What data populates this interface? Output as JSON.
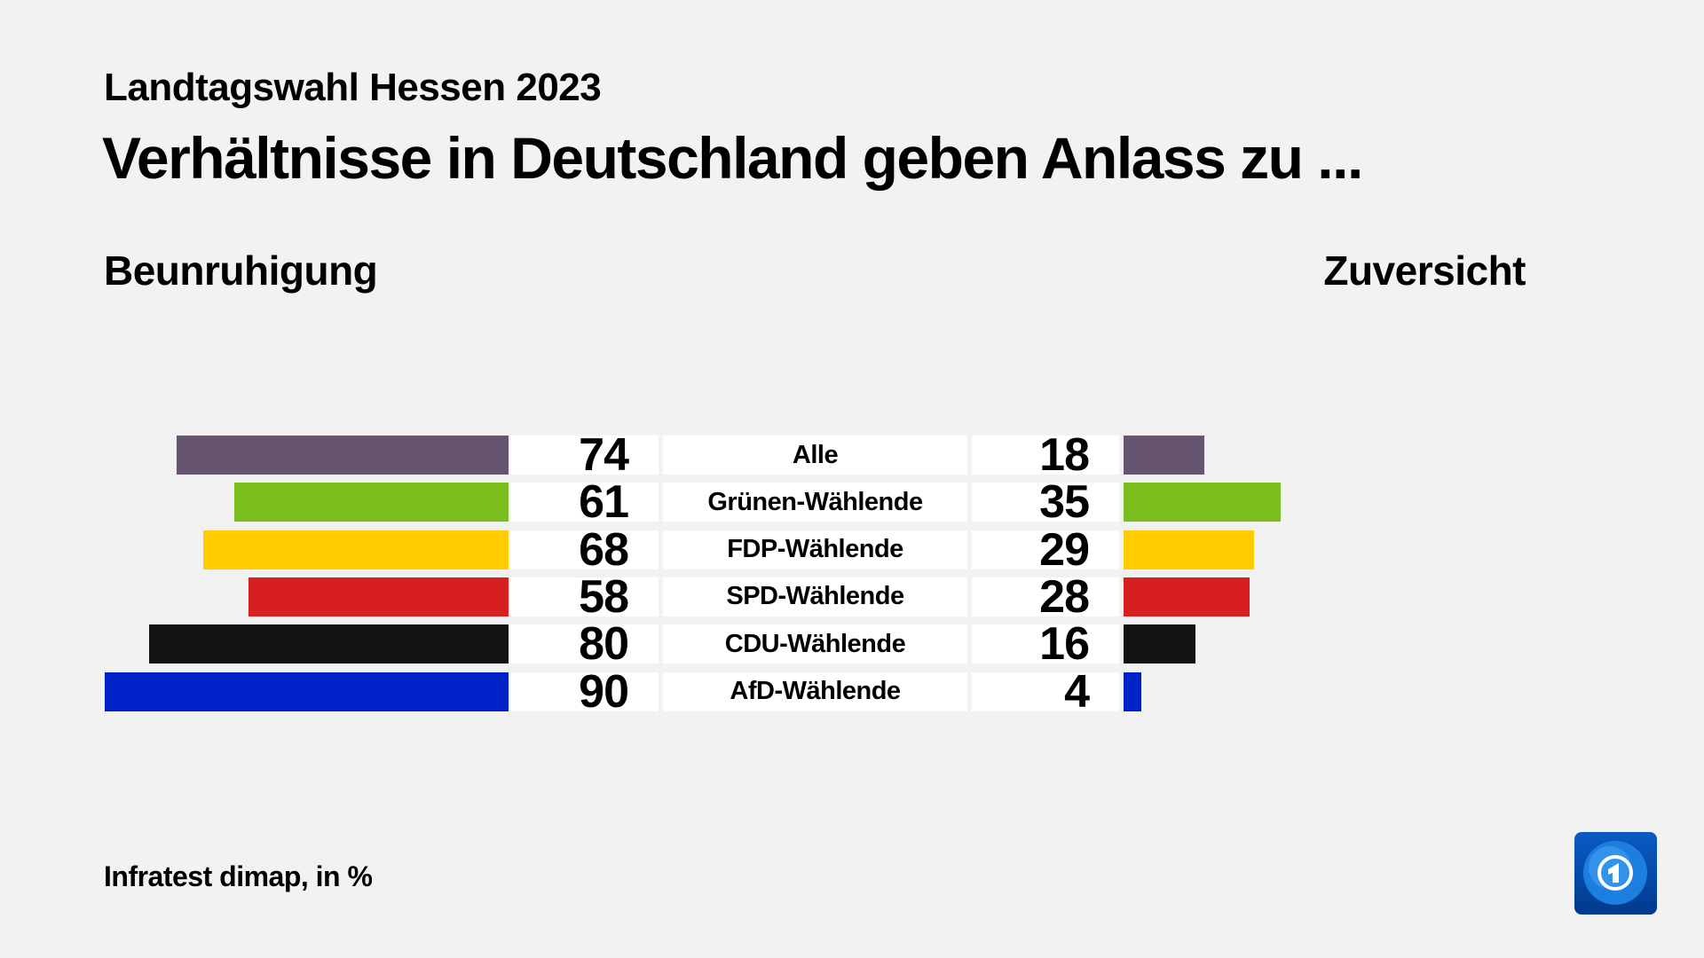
{
  "header": {
    "subtitle": "Landtagswahl Hessen 2023",
    "title": "Verhältnisse in Deutschland geben Anlass zu ..."
  },
  "chart_data": {
    "type": "bar",
    "left_label": "Beunruhigung",
    "right_label": "Zuversicht",
    "categories": [
      "Alle",
      "Grünen-Wählende",
      "FDP-Wählende",
      "SPD-Wählende",
      "CDU-Wählende",
      "AfD-Wählende"
    ],
    "series": [
      {
        "name": "Beunruhigung",
        "values": [
          74,
          61,
          68,
          58,
          80,
          90
        ]
      },
      {
        "name": "Zuversicht",
        "values": [
          18,
          35,
          29,
          28,
          16,
          4
        ]
      }
    ],
    "colors": [
      "#67556f",
      "#7abe1d",
      "#ffcc00",
      "#d81f1f",
      "#121212",
      "#0021c8"
    ],
    "unit": "%"
  },
  "footer": {
    "source": "Infratest dimap, in %"
  },
  "logo": {
    "name": "tagesschau-logo"
  }
}
